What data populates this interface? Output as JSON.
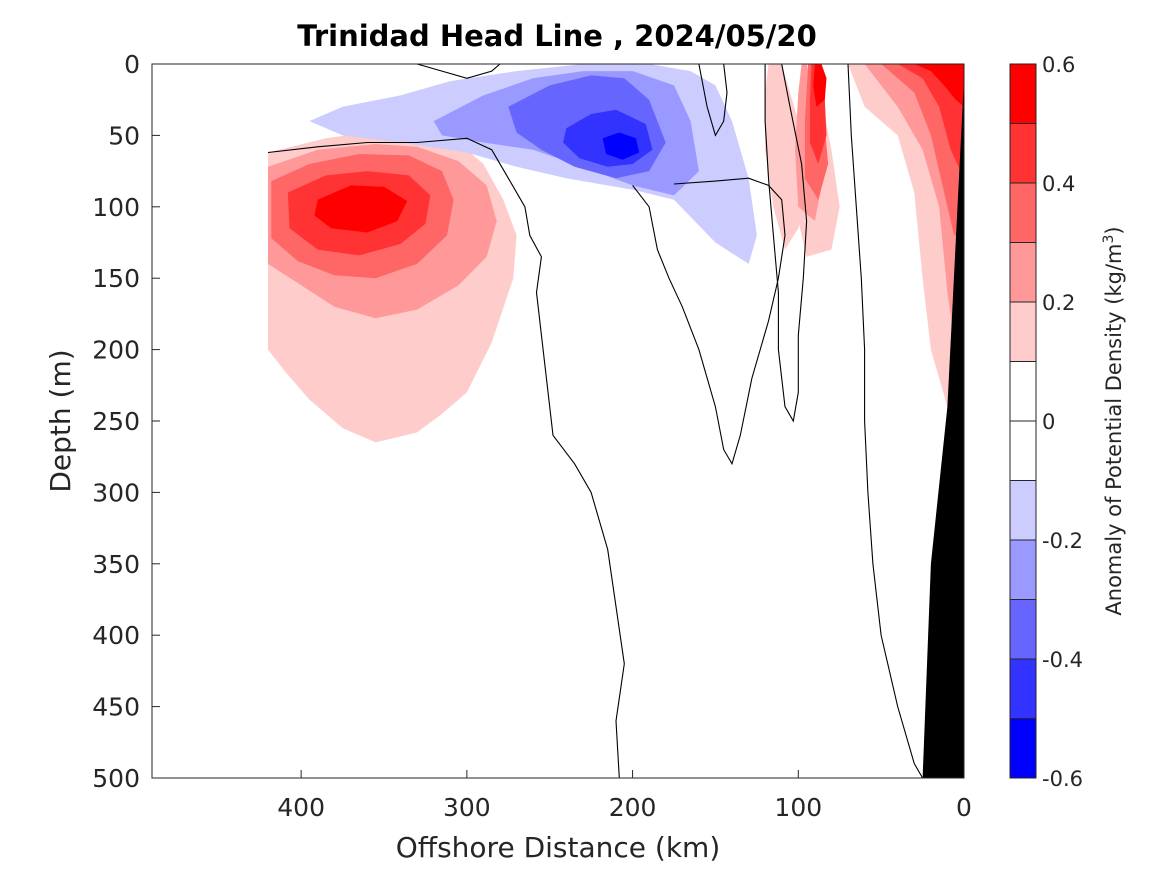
{
  "chart_data": {
    "type": "heatmap",
    "subtype": "filled-contour-section",
    "title": "Trinidad Head Line , 2024/05/20",
    "xlabel": "Offshore Distance (km)",
    "ylabel": "Depth (m)",
    "xlim": [
      490,
      0
    ],
    "ylim": [
      0,
      500
    ],
    "x_reversed": true,
    "y_reversed": true,
    "xticks": [
      400,
      300,
      200,
      100,
      0
    ],
    "yticks": [
      0,
      50,
      100,
      150,
      200,
      250,
      300,
      350,
      400,
      450,
      500
    ],
    "colorbar": {
      "label": "Anomaly of Potential Density (kg/m",
      "label_sup": "3",
      "label_close": ")",
      "range": [
        -0.6,
        0.6
      ],
      "ticks": [
        "0.6",
        "0.4",
        "0.2",
        "0",
        "-0.2",
        "-0.4",
        "-0.6"
      ],
      "tick_values": [
        0.6,
        0.4,
        0.2,
        0,
        -0.2,
        -0.4,
        -0.6
      ],
      "levels": [
        0.6,
        0.5,
        0.4,
        0.3,
        0.2,
        0.1,
        0,
        -0.1,
        -0.2,
        -0.3,
        -0.4,
        -0.5,
        -0.6
      ],
      "colors": [
        "#ff0000",
        "#ff3333",
        "#ff6666",
        "#ff9999",
        "#ffcccc",
        "#ffffff",
        "#ffffff",
        "#ccccff",
        "#9999ff",
        "#6666ff",
        "#3333ff",
        "#0000ff"
      ]
    },
    "grid": false,
    "bathymetry_color": "#000000",
    "regions": [
      {
        "level": 0.1,
        "points": [
          [
            420,
            62
          ],
          [
            385,
            52
          ],
          [
            355,
            47
          ],
          [
            325,
            48
          ],
          [
            305,
            55
          ],
          [
            290,
            70
          ],
          [
            278,
            95
          ],
          [
            270,
            120
          ],
          [
            272,
            150
          ],
          [
            285,
            195
          ],
          [
            300,
            230
          ],
          [
            315,
            245
          ],
          [
            330,
            258
          ],
          [
            355,
            265
          ],
          [
            375,
            255
          ],
          [
            395,
            235
          ],
          [
            410,
            215
          ],
          [
            420,
            200
          ]
        ]
      },
      {
        "level": 0.2,
        "points": [
          [
            420,
            72
          ],
          [
            390,
            60
          ],
          [
            355,
            56
          ],
          [
            330,
            58
          ],
          [
            305,
            68
          ],
          [
            288,
            85
          ],
          [
            282,
            110
          ],
          [
            288,
            135
          ],
          [
            305,
            155
          ],
          [
            330,
            172
          ],
          [
            355,
            178
          ],
          [
            380,
            170
          ],
          [
            400,
            155
          ],
          [
            420,
            140
          ]
        ]
      },
      {
        "level": 0.3,
        "points": [
          [
            418,
            82
          ],
          [
            395,
            70
          ],
          [
            365,
            63
          ],
          [
            335,
            64
          ],
          [
            315,
            75
          ],
          [
            308,
            95
          ],
          [
            312,
            120
          ],
          [
            330,
            140
          ],
          [
            355,
            150
          ],
          [
            380,
            148
          ],
          [
            402,
            138
          ],
          [
            418,
            122
          ]
        ]
      },
      {
        "level": 0.4,
        "points": [
          [
            408,
            90
          ],
          [
            385,
            78
          ],
          [
            360,
            75
          ],
          [
            335,
            78
          ],
          [
            322,
            92
          ],
          [
            325,
            112
          ],
          [
            340,
            126
          ],
          [
            365,
            134
          ],
          [
            390,
            130
          ],
          [
            407,
            115
          ]
        ]
      },
      {
        "level": 0.5,
        "points": [
          [
            390,
            95
          ],
          [
            370,
            85
          ],
          [
            350,
            86
          ],
          [
            336,
            96
          ],
          [
            342,
            110
          ],
          [
            360,
            118
          ],
          [
            382,
            115
          ],
          [
            392,
            106
          ]
        ]
      },
      {
        "level": -0.1,
        "points": [
          [
            395,
            40
          ],
          [
            375,
            30
          ],
          [
            340,
            22
          ],
          [
            310,
            12
          ],
          [
            270,
            5
          ],
          [
            230,
            0
          ],
          [
            190,
            0
          ],
          [
            165,
            5
          ],
          [
            150,
            15
          ],
          [
            140,
            40
          ],
          [
            130,
            80
          ],
          [
            125,
            120
          ],
          [
            130,
            140
          ],
          [
            150,
            125
          ],
          [
            175,
            95
          ],
          [
            200,
            88
          ],
          [
            240,
            80
          ],
          [
            270,
            72
          ],
          [
            300,
            62
          ],
          [
            340,
            55
          ],
          [
            375,
            50
          ]
        ]
      },
      {
        "level": -0.2,
        "points": [
          [
            320,
            40
          ],
          [
            290,
            22
          ],
          [
            260,
            10
          ],
          [
            230,
            5
          ],
          [
            200,
            5
          ],
          [
            175,
            15
          ],
          [
            165,
            40
          ],
          [
            160,
            75
          ],
          [
            175,
            92
          ],
          [
            200,
            85
          ],
          [
            230,
            72
          ],
          [
            260,
            60
          ],
          [
            290,
            55
          ],
          [
            315,
            50
          ]
        ]
      },
      {
        "level": -0.3,
        "points": [
          [
            275,
            30
          ],
          [
            250,
            15
          ],
          [
            225,
            8
          ],
          [
            205,
            10
          ],
          [
            190,
            25
          ],
          [
            180,
            55
          ],
          [
            190,
            75
          ],
          [
            210,
            80
          ],
          [
            235,
            72
          ],
          [
            255,
            60
          ],
          [
            270,
            48
          ]
        ]
      },
      {
        "level": -0.4,
        "points": [
          [
            240,
            45
          ],
          [
            225,
            35
          ],
          [
            210,
            32
          ],
          [
            192,
            42
          ],
          [
            188,
            60
          ],
          [
            200,
            70
          ],
          [
            215,
            72
          ],
          [
            232,
            66
          ],
          [
            242,
            55
          ]
        ]
      },
      {
        "level": -0.5,
        "points": [
          [
            218,
            52
          ],
          [
            208,
            48
          ],
          [
            198,
            52
          ],
          [
            196,
            62
          ],
          [
            206,
            67
          ],
          [
            216,
            63
          ]
        ]
      },
      {
        "level": 0.1,
        "points": [
          [
            110,
            0
          ],
          [
            100,
            40
          ],
          [
            95,
            80
          ],
          [
            100,
            115
          ],
          [
            108,
            130
          ],
          [
            115,
            100
          ],
          [
            120,
            60
          ],
          [
            120,
            20
          ],
          [
            118,
            0
          ]
        ]
      },
      {
        "level": 0.1,
        "points": [
          [
            90,
            0
          ],
          [
            80,
            60
          ],
          [
            75,
            100
          ],
          [
            80,
            130
          ],
          [
            95,
            135
          ],
          [
            100,
            110
          ],
          [
            98,
            70
          ],
          [
            96,
            30
          ],
          [
            95,
            0
          ]
        ]
      },
      {
        "level": 0.1,
        "points": [
          [
            70,
            0
          ],
          [
            60,
            30
          ],
          [
            40,
            50
          ],
          [
            30,
            90
          ],
          [
            25,
            150
          ],
          [
            20,
            200
          ],
          [
            10,
            240
          ],
          [
            5,
            250
          ],
          [
            0,
            250
          ],
          [
            0,
            0
          ]
        ]
      },
      {
        "level": 0.2,
        "points": [
          [
            95,
            0
          ],
          [
            88,
            40
          ],
          [
            85,
            80
          ],
          [
            90,
            110
          ],
          [
            100,
            100
          ],
          [
            102,
            60
          ],
          [
            100,
            20
          ],
          [
            98,
            0
          ]
        ]
      },
      {
        "level": 0.2,
        "points": [
          [
            60,
            0
          ],
          [
            40,
            30
          ],
          [
            25,
            60
          ],
          [
            15,
            100
          ],
          [
            10,
            160
          ],
          [
            5,
            200
          ],
          [
            0,
            200
          ],
          [
            0,
            0
          ]
        ]
      },
      {
        "level": 0.3,
        "points": [
          [
            90,
            0
          ],
          [
            85,
            30
          ],
          [
            82,
            70
          ],
          [
            88,
            95
          ],
          [
            96,
            80
          ],
          [
            96,
            40
          ],
          [
            94,
            0
          ]
        ]
      },
      {
        "level": 0.3,
        "points": [
          [
            50,
            0
          ],
          [
            30,
            20
          ],
          [
            20,
            50
          ],
          [
            12,
            90
          ],
          [
            6,
            120
          ],
          [
            0,
            120
          ],
          [
            0,
            0
          ]
        ]
      },
      {
        "level": 0.4,
        "points": [
          [
            88,
            0
          ],
          [
            84,
            25
          ],
          [
            83,
            50
          ],
          [
            88,
            70
          ],
          [
            93,
            55
          ],
          [
            93,
            25
          ],
          [
            92,
            0
          ]
        ]
      },
      {
        "level": 0.4,
        "points": [
          [
            40,
            0
          ],
          [
            25,
            10
          ],
          [
            15,
            30
          ],
          [
            8,
            60
          ],
          [
            0,
            80
          ],
          [
            0,
            0
          ]
        ]
      },
      {
        "level": 0.5,
        "points": [
          [
            86,
            0
          ],
          [
            83,
            10
          ],
          [
            84,
            25
          ],
          [
            89,
            30
          ],
          [
            91,
            15
          ],
          [
            90,
            0
          ]
        ]
      },
      {
        "level": 0.5,
        "points": [
          [
            30,
            0
          ],
          [
            20,
            5
          ],
          [
            12,
            15
          ],
          [
            5,
            25
          ],
          [
            0,
            30
          ],
          [
            0,
            0
          ]
        ]
      }
    ],
    "contour_lines": [
      {
        "level": 0,
        "points": [
          [
            420,
            62
          ],
          [
            390,
            58
          ],
          [
            360,
            55
          ],
          [
            330,
            55
          ],
          [
            300,
            52
          ],
          [
            285,
            60
          ],
          [
            275,
            80
          ],
          [
            265,
            100
          ],
          [
            262,
            120
          ],
          [
            255,
            135
          ],
          [
            258,
            160
          ],
          [
            254,
            200
          ],
          [
            250,
            240
          ],
          [
            248,
            260
          ],
          [
            235,
            280
          ],
          [
            225,
            300
          ],
          [
            215,
            340
          ],
          [
            210,
            380
          ],
          [
            205,
            420
          ],
          [
            210,
            460
          ],
          [
            208,
            500
          ]
        ]
      },
      {
        "level": 0,
        "points": [
          [
            200,
            85
          ],
          [
            190,
            100
          ],
          [
            185,
            130
          ],
          [
            178,
            150
          ],
          [
            170,
            170
          ],
          [
            160,
            200
          ],
          [
            150,
            240
          ],
          [
            145,
            270
          ],
          [
            140,
            280
          ],
          [
            135,
            260
          ],
          [
            128,
            220
          ],
          [
            118,
            180
          ],
          [
            112,
            150
          ],
          [
            108,
            120
          ],
          [
            110,
            95
          ],
          [
            118,
            85
          ],
          [
            130,
            80
          ],
          [
            150,
            82
          ],
          [
            175,
            84
          ]
        ]
      },
      {
        "level": 0,
        "points": [
          [
            110,
            0
          ],
          [
            105,
            30
          ],
          [
            98,
            70
          ],
          [
            95,
            110
          ],
          [
            97,
            150
          ],
          [
            100,
            190
          ],
          [
            100,
            230
          ],
          [
            103,
            250
          ],
          [
            108,
            240
          ],
          [
            112,
            200
          ],
          [
            112,
            160
          ],
          [
            115,
            120
          ],
          [
            118,
            80
          ],
          [
            120,
            40
          ],
          [
            120,
            0
          ]
        ]
      },
      {
        "level": 0,
        "points": [
          [
            70,
            0
          ],
          [
            68,
            50
          ],
          [
            65,
            100
          ],
          [
            62,
            150
          ],
          [
            60,
            200
          ],
          [
            60,
            250
          ],
          [
            58,
            300
          ],
          [
            55,
            350
          ],
          [
            50,
            400
          ],
          [
            40,
            450
          ],
          [
            30,
            490
          ],
          [
            25,
            500
          ]
        ]
      },
      {
        "level": 0,
        "points": [
          [
            160,
            0
          ],
          [
            155,
            30
          ],
          [
            150,
            50
          ],
          [
            145,
            40
          ],
          [
            143,
            20
          ],
          [
            145,
            0
          ]
        ]
      },
      {
        "level": 0,
        "points": [
          [
            330,
            0
          ],
          [
            315,
            5
          ],
          [
            300,
            10
          ],
          [
            285,
            5
          ],
          [
            280,
            0
          ]
        ]
      }
    ],
    "bathymetry": [
      [
        25,
        500
      ],
      [
        0,
        500
      ],
      [
        0,
        10
      ],
      [
        10,
        240
      ],
      [
        20,
        350
      ]
    ]
  }
}
